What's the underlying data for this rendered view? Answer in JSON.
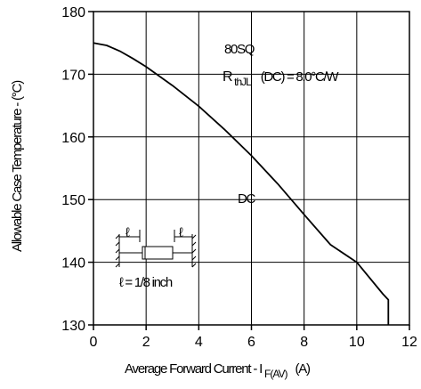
{
  "chart_data": {
    "type": "line",
    "xlabel": "Average Forward Current - I",
    "xlabel_sub": "F(AV)",
    "xlabel_unit": "(A)",
    "ylabel": "Allowable Case Temperature - (°C)",
    "xlim": [
      0,
      12
    ],
    "ylim": [
      130,
      180
    ],
    "x_ticks": [
      "0",
      "2",
      "4",
      "6",
      "8",
      "10",
      "12"
    ],
    "y_ticks": [
      "130",
      "140",
      "150",
      "160",
      "170",
      "180"
    ],
    "grid": true,
    "series": [
      {
        "name": "DC",
        "color": "#000000",
        "points": [
          [
            0,
            175
          ],
          [
            0.5,
            174.6
          ],
          [
            1,
            173.7
          ],
          [
            1.5,
            172.5
          ],
          [
            2,
            171.2
          ],
          [
            3,
            168.2
          ],
          [
            4,
            164.9
          ],
          [
            5,
            161.1
          ],
          [
            6,
            157.0
          ],
          [
            7,
            152.5
          ],
          [
            8,
            147.6
          ],
          [
            9,
            142.8
          ],
          [
            10,
            140.0
          ],
          [
            11,
            134.9
          ],
          [
            11.2,
            134.0
          ],
          [
            11.2,
            130
          ]
        ]
      }
    ],
    "annotations": {
      "part": "80SQ",
      "rth_r": "R",
      "rth_sub": "thJL",
      "rth_rest": "(DC) = 8.0°C/W",
      "curve_label": "DC",
      "lead_left": "ℓ",
      "lead_right": "ℓ",
      "lead_text": "ℓ = 1/8 inch"
    }
  }
}
